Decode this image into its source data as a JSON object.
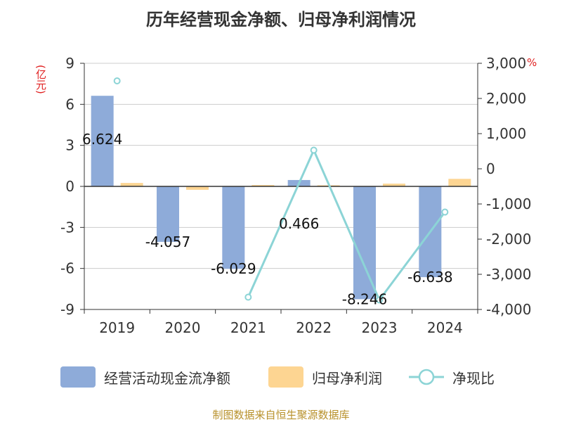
{
  "title": "历年经营现金净额、归母净利润情况",
  "footer": "制图数据来自恒生聚源数据库",
  "colors": {
    "bar1": "#8eabd9",
    "bar2": "#fdd592",
    "line": "#8cd4d6",
    "axis": "#333333",
    "grid": "#cccccc",
    "unit": "#e02020"
  },
  "chart_data": {
    "type": "bar+line",
    "title": "历年经营现金净额、归母净利润情况",
    "categories": [
      "2019",
      "2020",
      "2021",
      "2022",
      "2023",
      "2024"
    ],
    "left_axis": {
      "label": "(亿元)",
      "ylim": [
        -9,
        9
      ],
      "ticks": [
        -9,
        -6,
        -3,
        0,
        3,
        6,
        9
      ],
      "tick_labels": [
        "-9",
        "-6",
        "-3",
        "0",
        "3",
        "6",
        "9"
      ]
    },
    "right_axis": {
      "label": "%",
      "ylim": [
        -4000,
        3000
      ],
      "ticks": [
        -4000,
        -3000,
        -2000,
        -1000,
        0,
        1000,
        2000,
        3000
      ],
      "tick_labels": [
        "-4,000",
        "-3,000",
        "-2,000",
        "-1,000",
        "0",
        "1,000",
        "2,000",
        "3,000"
      ]
    },
    "series": [
      {
        "name": "经营活动现金流净额",
        "type": "bar",
        "axis": "left",
        "values": [
          6.624,
          -4.057,
          -6.029,
          0.466,
          -8.246,
          -6.638
        ],
        "labels": [
          "6.624",
          "-4.057",
          "-6.029",
          "0.466",
          "-8.246",
          "-6.638"
        ]
      },
      {
        "name": "归母净利润",
        "type": "bar",
        "axis": "left",
        "values": [
          0.25,
          -0.25,
          0.1,
          0.08,
          0.2,
          0.55
        ]
      },
      {
        "name": "净现比",
        "type": "line",
        "axis": "right",
        "values": [
          2500,
          null,
          -3650,
          530,
          -3730,
          -1230
        ]
      }
    ]
  }
}
